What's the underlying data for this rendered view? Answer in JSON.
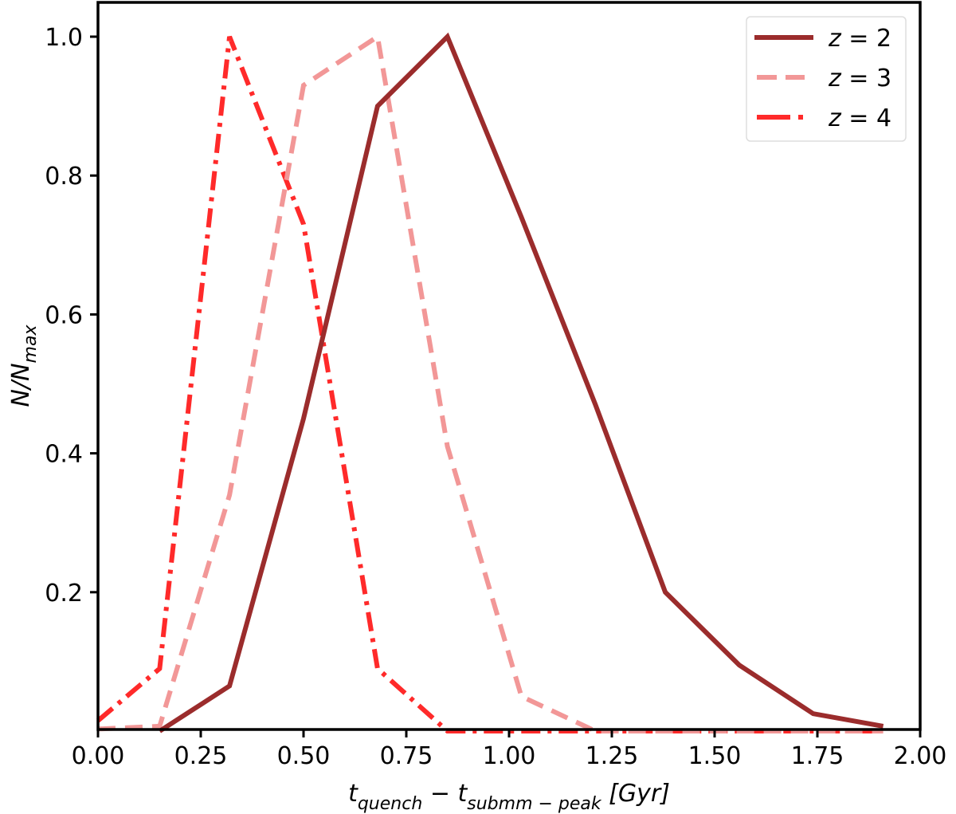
{
  "chart_data": {
    "type": "line",
    "title": "",
    "xlabel": "t_quench − t_submm−peak [Gyr]",
    "xlabel_parts": {
      "main1": "t",
      "sub1": "quench",
      "minus": " − ",
      "main2": "t",
      "sub2": "submm − peak",
      "unit": " [Gyr]"
    },
    "ylabel": "N/N_max",
    "ylabel_parts": {
      "main": "N/N",
      "sub": "max"
    },
    "xlim": [
      0.0,
      2.0
    ],
    "ylim": [
      0.0,
      1.05
    ],
    "xticks": [
      "0.00",
      "0.25",
      "0.50",
      "0.75",
      "1.00",
      "1.25",
      "1.50",
      "1.75",
      "2.00"
    ],
    "xtick_values": [
      0.0,
      0.25,
      0.5,
      0.75,
      1.0,
      1.25,
      1.5,
      1.75,
      2.0
    ],
    "yticks": [
      "0.2",
      "0.4",
      "0.6",
      "0.8",
      "1.0"
    ],
    "ytick_values": [
      0.2,
      0.4,
      0.6,
      0.8,
      1.0
    ],
    "grid": false,
    "legend_position": "upper right",
    "series": [
      {
        "name": "z = 2",
        "label_main": "z",
        "label_eq": " = ",
        "label_val": "2",
        "color": "#9b2c2c",
        "linestyle": "solid",
        "x": [
          0.15,
          0.32,
          0.5,
          0.68,
          0.85,
          1.03,
          1.21,
          1.38,
          1.56,
          1.74,
          1.91
        ],
        "y": [
          0.0,
          0.065,
          0.45,
          0.9,
          1.0,
          0.74,
          0.47,
          0.2,
          0.095,
          0.025,
          0.007
        ]
      },
      {
        "name": "z = 3",
        "label_main": "z",
        "label_eq": " = ",
        "label_val": "3",
        "color": "#f29797",
        "linestyle": "dashed",
        "x": [
          0.0,
          0.15,
          0.32,
          0.5,
          0.68,
          0.85,
          1.03,
          1.21,
          1.38,
          1.56,
          1.74,
          1.91
        ],
        "y": [
          0.003,
          0.007,
          0.34,
          0.93,
          1.0,
          0.41,
          0.05,
          0.0,
          0.0,
          0.0,
          0.0,
          0.0
        ]
      },
      {
        "name": "z = 4",
        "label_main": "z",
        "label_eq": " = ",
        "label_val": "4",
        "color": "#ff2a2a",
        "linestyle": "dashdot",
        "x": [
          0.0,
          0.15,
          0.32,
          0.5,
          0.68,
          0.85,
          1.03,
          1.21,
          1.38,
          1.56,
          1.74,
          1.91
        ],
        "y": [
          0.015,
          0.09,
          1.0,
          0.73,
          0.09,
          0.0,
          0.0,
          0.0,
          0.0,
          0.0,
          0.0,
          0.0
        ]
      }
    ]
  }
}
